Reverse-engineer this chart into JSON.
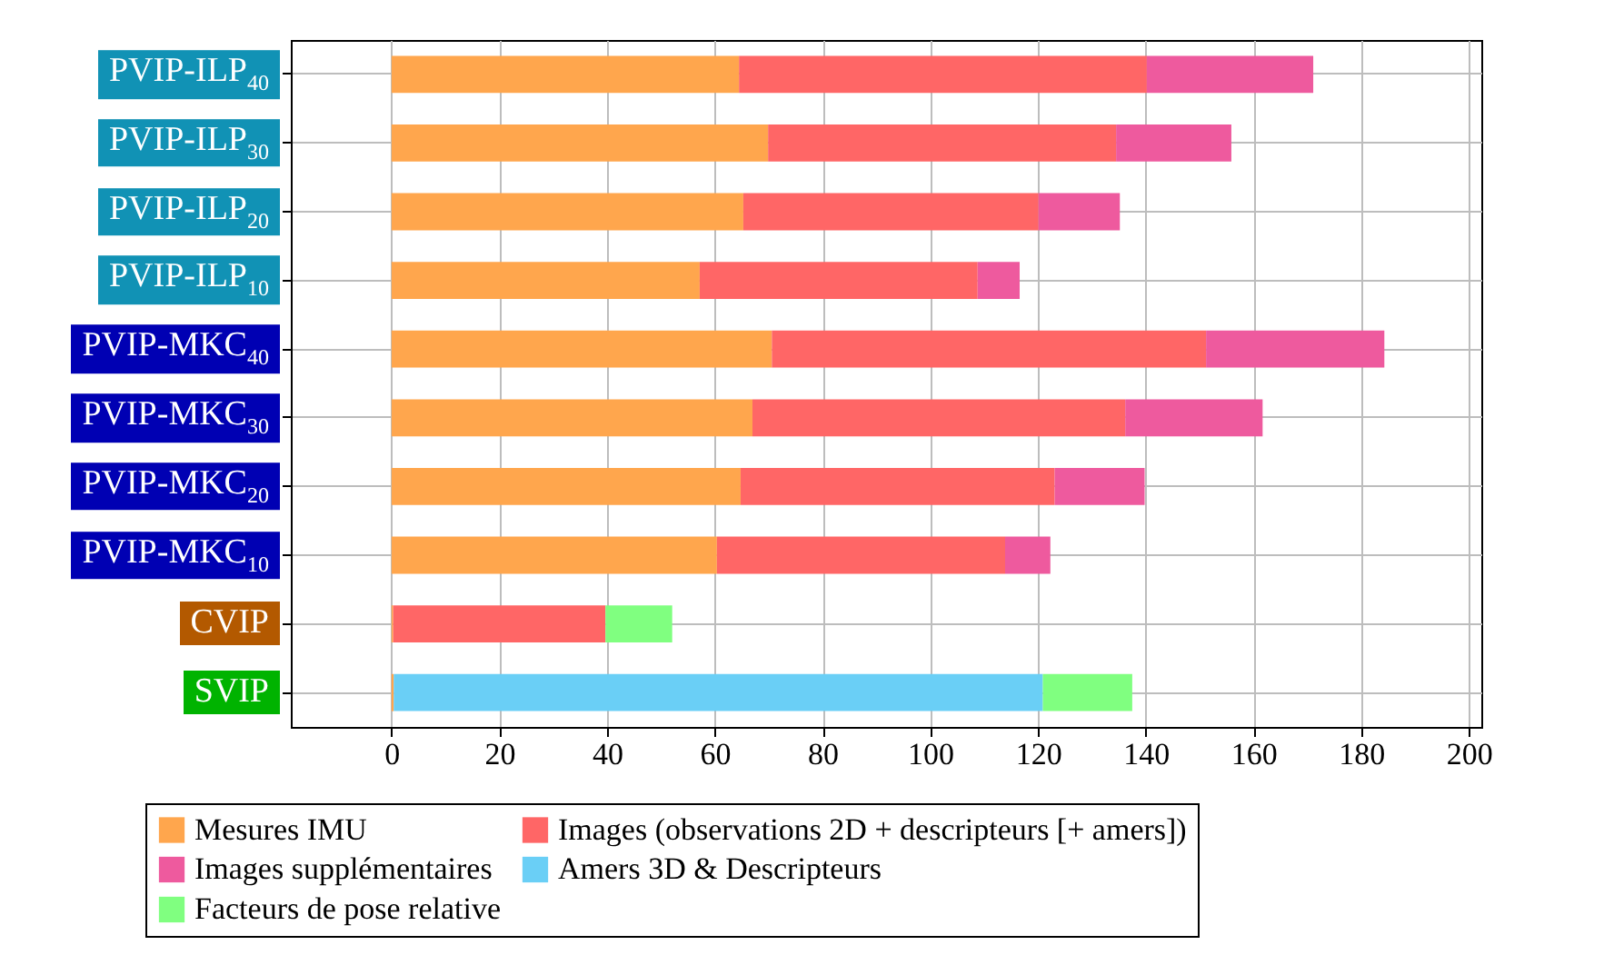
{
  "chart_data": {
    "type": "bar",
    "orientation": "horizontal",
    "stacked": true,
    "categories": [
      "PVIP-ILP$_{40}$",
      "PVIP-ILP$_{30}$",
      "PVIP-ILP$_{20}$",
      "PVIP-ILP$_{10}$",
      "PVIP-MKC$_{40}$",
      "PVIP-MKC$_{30}$",
      "PVIP-MKC$_{20}$",
      "PVIP-MKC$_{10}$",
      "CVIP",
      "SVIP"
    ],
    "series": [
      {
        "name": "Mesures IMU",
        "color": "#ffa64d",
        "values": [
          64.5,
          69.9,
          65.3,
          57.2,
          70.6,
          67.0,
          64.8,
          60.4,
          0.3,
          0.4
        ]
      },
      {
        "name": "Images (observations 2D + descripteurs [+ amers])",
        "color": "#ff6666",
        "values": [
          75.7,
          64.6,
          54.8,
          51.6,
          80.6,
          69.2,
          58.3,
          53.5,
          39.4,
          null
        ]
      },
      {
        "name": "Images supplémentaires",
        "color": "#ee5a9e",
        "values": [
          30.9,
          21.4,
          15.1,
          7.8,
          33.1,
          25.5,
          16.7,
          8.4,
          null,
          null
        ]
      },
      {
        "name": "Amers 3D & Descripteurs",
        "color": "#6acff6",
        "values": [
          null,
          null,
          null,
          null,
          null,
          null,
          null,
          null,
          null,
          120.5
        ]
      },
      {
        "name": "Facteurs de pose relative",
        "color": "#80ff80",
        "values": [
          null,
          null,
          null,
          null,
          null,
          null,
          null,
          null,
          12.4,
          16.6
        ]
      }
    ],
    "xlim": [
      -18.7,
      202.3
    ],
    "xticks": [
      0,
      20,
      40,
      60,
      80,
      100,
      120,
      140,
      160,
      180,
      200
    ],
    "grid": true,
    "legend": "bottom"
  }
}
